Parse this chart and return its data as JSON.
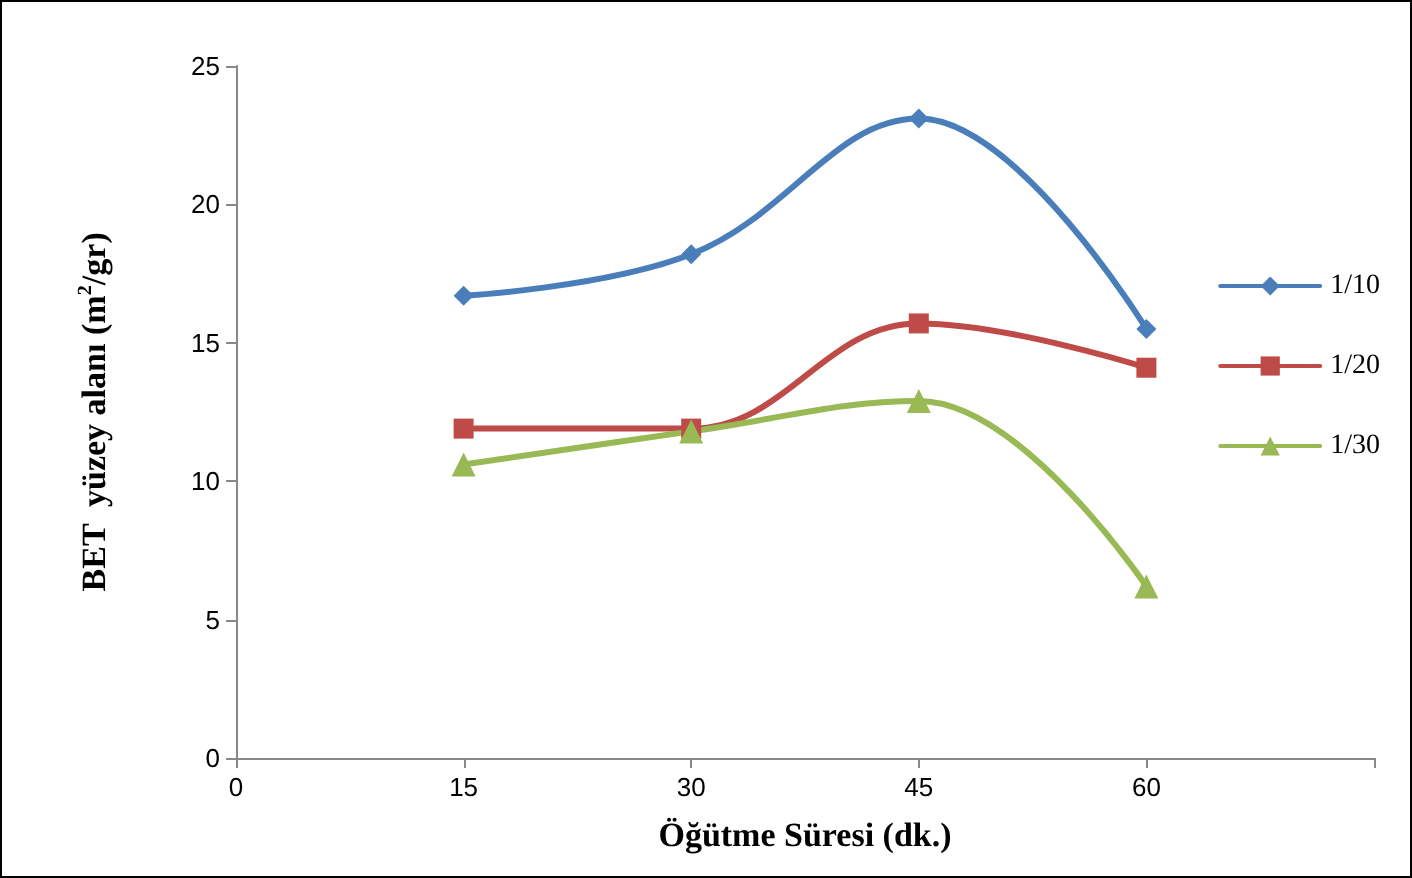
{
  "chart_data": {
    "type": "line",
    "xlabel": "Öğütme Süresi (dk.)",
    "ylabel": "BET  yüzey alanı (m$^{2}$/gr)",
    "x": [
      15,
      30,
      45,
      60
    ],
    "series": [
      {
        "name": "1/10",
        "color": "#4a7ebb",
        "marker": "diamond",
        "values": [
          16.7,
          18.2,
          23.1,
          15.5
        ]
      },
      {
        "name": "1/20",
        "color": "#be4b48",
        "marker": "square",
        "values": [
          11.9,
          11.9,
          15.7,
          14.1
        ]
      },
      {
        "name": "1/30",
        "color": "#98b954",
        "marker": "triangle",
        "values": [
          10.6,
          11.8,
          12.9,
          6.2
        ]
      }
    ],
    "xlim": [
      0,
      75
    ],
    "xticks": [
      0,
      15,
      30,
      45,
      60,
      {
        "value": 75,
        "label": null
      }
    ],
    "ylim": [
      0,
      25
    ],
    "yticks": [
      0,
      5,
      10,
      15,
      20,
      25
    ],
    "grid": false,
    "legend": "right",
    "line_style": "solid"
  }
}
